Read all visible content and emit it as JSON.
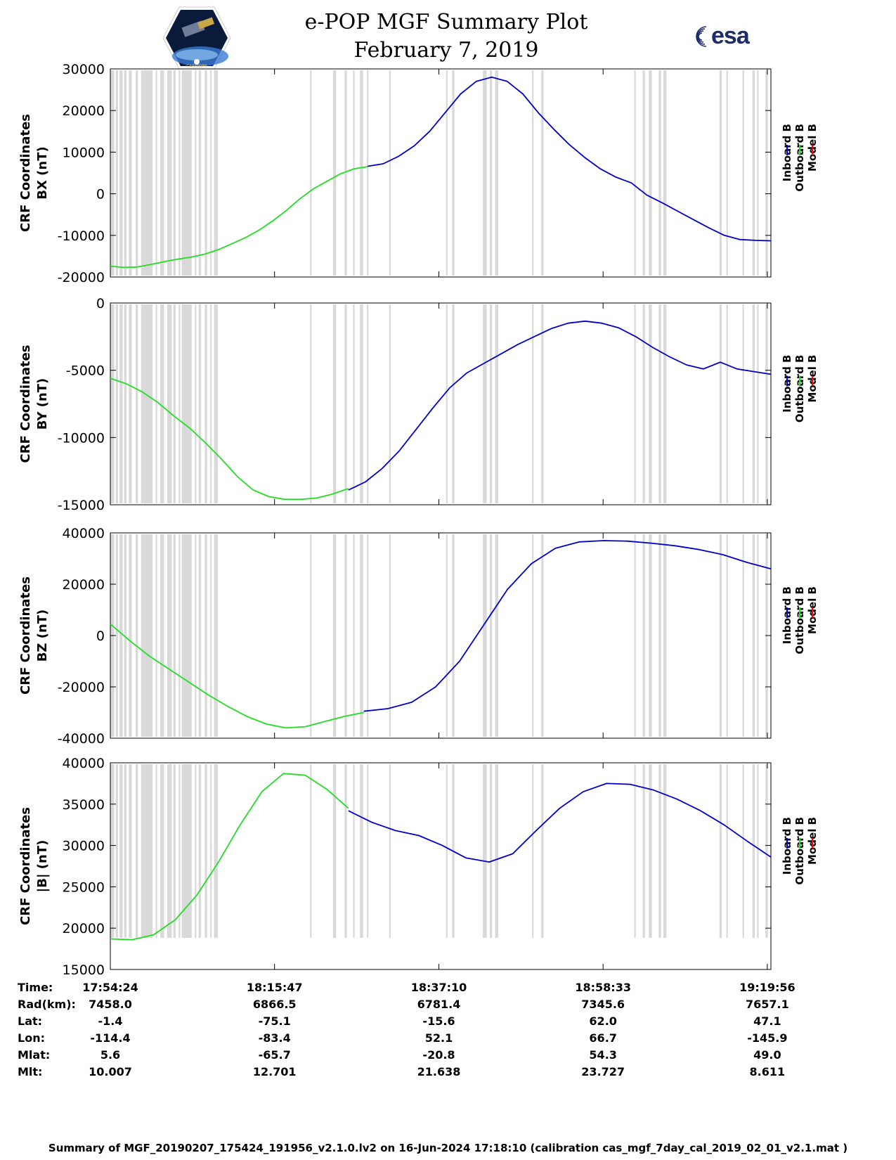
{
  "header": {
    "title_line1": "e-POP MGF Summary Plot",
    "title_line2": "February 7, 2019",
    "left_logo_caption": "CASSIOPE",
    "right_logo_text": "esa"
  },
  "colors": {
    "inboard": "#0000cc",
    "outboard": "#22dd22",
    "model": "#ff0000",
    "gap_shade": "#d9d9d9"
  },
  "chart_data": [
    {
      "type": "line",
      "title": "",
      "ylabel_line1": "CRF Coordinates",
      "ylabel_line2": "BX (nT)",
      "ylim": [
        -20000,
        30000
      ],
      "yticks": [
        30000,
        20000,
        10000,
        0,
        -10000,
        -20000
      ],
      "ytick_labels": [
        "30000",
        "20000",
        "10000",
        "0",
        "-10000",
        "-20000"
      ],
      "legend": [
        "Inboard B",
        "Outboard B",
        "Model B"
      ],
      "x_minutes": [
        0,
        2,
        4,
        6,
        8,
        10,
        12,
        14,
        16,
        18,
        20,
        22,
        24,
        26,
        28,
        30,
        32,
        34,
        36,
        38,
        40,
        42,
        44,
        46,
        48,
        50,
        52,
        54,
        56,
        58,
        60,
        62,
        64,
        66,
        68,
        70,
        72,
        74,
        76,
        78,
        80,
        82,
        84,
        86
      ],
      "series": [
        {
          "name": "Outboard B",
          "x_range": [
            0,
            33.5
          ],
          "values": [
            -17400,
            -17700,
            -17600,
            -17000,
            -16300,
            -15700,
            -15200,
            -14500,
            -13400,
            -12000,
            -10500,
            -8700,
            -6500,
            -4000,
            -1200,
            1200,
            3000,
            4800,
            6000,
            6500
          ]
        },
        {
          "name": "Inboard B",
          "x_range": [
            33.5,
            86
          ],
          "values": [
            6600,
            7200,
            9000,
            11500,
            15000,
            19500,
            24000,
            27000,
            28000,
            27000,
            24000,
            19500,
            15500,
            11800,
            8700,
            6000,
            4000,
            2600,
            -300,
            -2200,
            -4200,
            -6200,
            -8200,
            -10000,
            -11000,
            -11200,
            -11300
          ]
        }
      ]
    },
    {
      "type": "line",
      "title": "",
      "ylabel_line1": "CRF Coordinates",
      "ylabel_line2": "BY (nT)",
      "ylim": [
        -15000,
        0
      ],
      "yticks": [
        0,
        -5000,
        -10000,
        -15000
      ],
      "ytick_labels": [
        "0",
        "-5000",
        "-10000",
        "-15000"
      ],
      "legend": [
        "Inboard B",
        "Outboard B",
        "Model B"
      ],
      "series": [
        {
          "name": "Outboard B",
          "x_range": [
            0,
            31
          ],
          "values": [
            -5600,
            -6000,
            -6600,
            -7400,
            -8400,
            -9300,
            -10400,
            -11600,
            -12900,
            -13900,
            -14400,
            -14600,
            -14600,
            -14500,
            -14200,
            -13800
          ]
        },
        {
          "name": "Inboard B",
          "x_range": [
            31,
            86
          ],
          "values": [
            -13900,
            -13300,
            -12300,
            -11000,
            -9400,
            -7800,
            -6300,
            -5200,
            -4500,
            -3800,
            -3100,
            -2500,
            -1900,
            -1500,
            -1350,
            -1500,
            -1850,
            -2500,
            -3300,
            -4000,
            -4600,
            -4900,
            -4400,
            -4900,
            -5100,
            -5300
          ]
        }
      ]
    },
    {
      "type": "line",
      "title": "",
      "ylabel_line1": "CRF Coordinates",
      "ylabel_line2": "BZ (nT)",
      "ylim": [
        -40000,
        40000
      ],
      "yticks": [
        40000,
        20000,
        0,
        -20000,
        -40000
      ],
      "ytick_labels": [
        "40000",
        "20000",
        "0",
        "-20000",
        "-40000"
      ],
      "legend": [
        "Inboard B",
        "Outboard B",
        "Model B"
      ],
      "series": [
        {
          "name": "Outboard B",
          "x_range": [
            0,
            33
          ],
          "values": [
            4500,
            -2000,
            -8000,
            -13000,
            -18000,
            -23000,
            -27500,
            -31500,
            -34500,
            -36000,
            -35500,
            -33500,
            -31500,
            -30000
          ]
        },
        {
          "name": "Inboard B",
          "x_range": [
            33,
            86
          ],
          "values": [
            -29500,
            -28500,
            -26000,
            -20000,
            -10000,
            4000,
            18000,
            28000,
            34000,
            36500,
            37000,
            36800,
            36000,
            35000,
            33500,
            31500,
            28500,
            26000
          ]
        }
      ]
    },
    {
      "type": "line",
      "title": "",
      "ylabel_line1": "CRF Coordinates",
      "ylabel_line2": "|B| (nT)",
      "ylim": [
        15000,
        40000
      ],
      "yticks": [
        40000,
        35000,
        30000,
        25000,
        20000,
        15000
      ],
      "ytick_labels": [
        "40000",
        "35000",
        "30000",
        "25000",
        "20000",
        "15000"
      ],
      "legend": [
        "Inboard B",
        "Outboard B",
        "Model B"
      ],
      "series": [
        {
          "name": "Outboard B",
          "x_range": [
            0,
            31
          ],
          "values": [
            18700,
            18600,
            19200,
            21000,
            24000,
            28000,
            32500,
            36500,
            38700,
            38500,
            36800,
            34500
          ]
        },
        {
          "name": "Inboard B",
          "x_range": [
            31,
            86
          ],
          "values": [
            34200,
            32800,
            31800,
            31200,
            30000,
            28500,
            28000,
            29000,
            31800,
            34500,
            36500,
            37500,
            37400,
            36700,
            35600,
            34200,
            32500,
            30500,
            28600
          ]
        }
      ]
    }
  ],
  "shaded_intervals_minutes": [
    [
      0,
      0.5
    ],
    [
      0.7,
      1.0
    ],
    [
      1.2,
      1.6
    ],
    [
      1.8,
      2.1
    ],
    [
      2.4,
      2.8
    ],
    [
      3.3,
      3.6
    ],
    [
      4.0,
      5.5
    ],
    [
      5.9,
      6.1
    ],
    [
      6.5,
      7.0
    ],
    [
      7.4,
      8.0
    ],
    [
      8.2,
      8.5
    ],
    [
      8.9,
      9.1
    ],
    [
      9.3,
      10.6
    ],
    [
      11.0,
      11.2
    ],
    [
      11.5,
      11.8
    ],
    [
      12.3,
      12.6
    ],
    [
      13.0,
      13.2
    ],
    [
      13.5,
      14.0
    ],
    [
      26.0,
      26.2
    ],
    [
      29.0,
      29.4
    ],
    [
      30.5,
      30.8
    ],
    [
      31.6,
      31.8
    ],
    [
      32.5,
      32.9
    ],
    [
      33.4,
      33.6
    ],
    [
      36.3,
      36.5
    ],
    [
      43.7,
      43.9
    ],
    [
      44.5,
      44.8
    ],
    [
      48.5,
      49.0
    ],
    [
      49.4,
      49.7
    ],
    [
      50.1,
      50.5
    ],
    [
      54.9,
      55.1
    ],
    [
      56.1,
      56.4
    ],
    [
      68.2,
      68.4
    ],
    [
      69.3,
      69.6
    ],
    [
      70.1,
      70.5
    ],
    [
      71.4,
      71.7
    ],
    [
      72.0,
      72.4
    ],
    [
      79.3,
      79.6
    ],
    [
      80.2,
      80.4
    ],
    [
      82.3,
      82.5
    ],
    [
      83.6,
      83.9
    ],
    [
      84.2,
      84.4
    ],
    [
      85.3,
      85.6
    ]
  ],
  "x_axis": {
    "xlim_minutes": [
      0,
      86
    ],
    "tick_minutes": [
      0,
      21.38,
      42.77,
      64.15,
      85.53
    ]
  },
  "ephemeris": {
    "row_labels": [
      "Time:",
      "Rad(km):",
      "Lat:",
      "Lon:",
      "Mlat:",
      "Mlt:"
    ],
    "columns": [
      [
        "17:54:24",
        "7458.0",
        "-1.4",
        "-114.4",
        "5.6",
        "10.007"
      ],
      [
        "18:15:47",
        "6866.5",
        "-75.1",
        "-83.4",
        "-65.7",
        "12.701"
      ],
      [
        "18:37:10",
        "6781.4",
        "-15.6",
        "52.1",
        "-20.8",
        "21.638"
      ],
      [
        "18:58:33",
        "7345.6",
        "62.0",
        "66.7",
        "54.3",
        "23.727"
      ],
      [
        "19:19:56",
        "7657.1",
        "47.1",
        "-145.9",
        "49.0",
        "8.611"
      ]
    ]
  },
  "footer": "Summary of MGF_20190207_175424_191956_v2.1.0.lv2 on 16-Jun-2024 17:18:10 (calibration cas_mgf_7day_cal_2019_02_01_v2.1.mat )"
}
